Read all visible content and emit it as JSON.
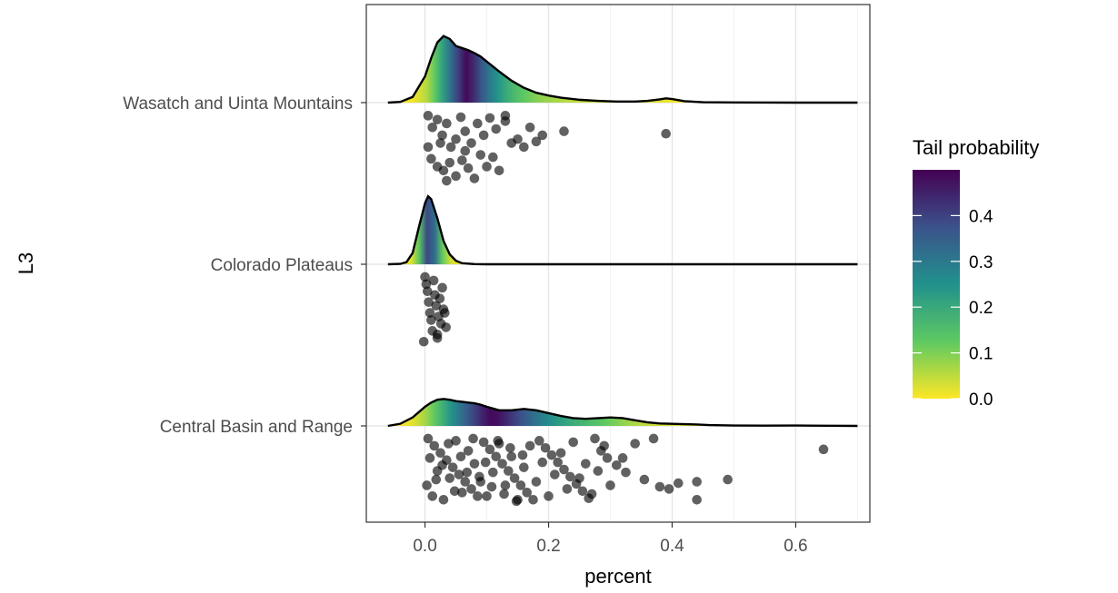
{
  "chart_data": {
    "type": "ridgeline-density-with-jittered-points",
    "xlabel": "percent",
    "ylabel": "L3",
    "xlim": [
      -0.095,
      0.72
    ],
    "x_ticks": [
      0.0,
      0.2,
      0.4,
      0.6
    ],
    "x_tick_labels": [
      "0.0",
      "0.2",
      "0.4",
      "0.6"
    ],
    "grid": "on",
    "legend": {
      "title": "Tail probability",
      "placement": "right",
      "range": [
        0,
        0.5
      ],
      "ticks": [
        0.0,
        0.1,
        0.2,
        0.3,
        0.4
      ],
      "tick_labels": [
        "0.0",
        "0.1",
        "0.2",
        "0.3",
        "0.4"
      ],
      "colors": [
        "#fde725",
        "#5ec962",
        "#21918c",
        "#3b528b",
        "#440154"
      ]
    },
    "categories": [
      "Wasatch and Uinta Mountains",
      "Colorado Plateaus",
      "Central Basin and Range"
    ],
    "series": [
      {
        "name": "Wasatch and Uinta Mountains",
        "density": {
          "x": [
            -0.06,
            -0.04,
            -0.02,
            0.0,
            0.01,
            0.02,
            0.03,
            0.04,
            0.05,
            0.06,
            0.07,
            0.08,
            0.09,
            0.1,
            0.12,
            0.14,
            0.16,
            0.18,
            0.2,
            0.22,
            0.25,
            0.28,
            0.31,
            0.34,
            0.36,
            0.38,
            0.39,
            0.4,
            0.42,
            0.45,
            0.5,
            0.6,
            0.7
          ],
          "y": [
            0.0,
            0.01,
            0.08,
            0.37,
            0.63,
            0.85,
            0.94,
            0.9,
            0.8,
            0.77,
            0.74,
            0.7,
            0.65,
            0.58,
            0.44,
            0.31,
            0.21,
            0.14,
            0.1,
            0.07,
            0.04,
            0.025,
            0.015,
            0.015,
            0.025,
            0.045,
            0.06,
            0.05,
            0.02,
            0.006,
            0.002,
            0.0,
            0.0
          ]
        },
        "points": [
          [
            0.005,
            0.95
          ],
          [
            0.012,
            0.8
          ],
          [
            0.02,
            0.9
          ],
          [
            0.028,
            0.7
          ],
          [
            0.035,
            0.85
          ],
          [
            0.042,
            0.55
          ],
          [
            0.05,
            0.65
          ],
          [
            0.058,
            0.93
          ],
          [
            0.065,
            0.75
          ],
          [
            0.075,
            0.6
          ],
          [
            0.085,
            0.85
          ],
          [
            0.095,
            0.7
          ],
          [
            0.105,
            0.92
          ],
          [
            0.115,
            0.78
          ],
          [
            0.13,
            0.88
          ],
          [
            0.15,
            0.65
          ],
          [
            0.17,
            0.8
          ],
          [
            0.19,
            0.7
          ],
          [
            0.225,
            0.75
          ],
          [
            0.39,
            0.72
          ],
          [
            0.01,
            0.4
          ],
          [
            0.02,
            0.3
          ],
          [
            0.03,
            0.25
          ],
          [
            0.04,
            0.35
          ],
          [
            0.05,
            0.18
          ],
          [
            0.06,
            0.38
          ],
          [
            0.07,
            0.28
          ],
          [
            0.08,
            0.15
          ],
          [
            0.09,
            0.45
          ],
          [
            0.1,
            0.3
          ],
          [
            0.12,
            0.25
          ],
          [
            0.14,
            0.6
          ],
          [
            0.16,
            0.55
          ],
          [
            0.18,
            0.62
          ],
          [
            0.005,
            0.55
          ],
          [
            0.035,
            0.12
          ],
          [
            0.065,
            0.5
          ],
          [
            0.11,
            0.42
          ],
          [
            0.13,
            0.95
          ],
          [
            0.025,
            0.6
          ]
        ]
      },
      {
        "name": "Colorado Plateaus",
        "density": {
          "x": [
            -0.06,
            -0.04,
            -0.03,
            -0.02,
            -0.01,
            0.0,
            0.005,
            0.01,
            0.02,
            0.03,
            0.04,
            0.05,
            0.06,
            0.08,
            0.1,
            0.2,
            0.4,
            0.7
          ],
          "y": [
            0.0,
            0.005,
            0.03,
            0.16,
            0.52,
            0.86,
            0.96,
            0.92,
            0.65,
            0.33,
            0.14,
            0.05,
            0.015,
            0.002,
            0.0,
            0.0,
            0.0,
            0.0
          ]
        },
        "points": [
          [
            0.0,
            0.95
          ],
          [
            0.002,
            0.85
          ],
          [
            0.004,
            0.75
          ],
          [
            0.006,
            0.6
          ],
          [
            0.008,
            0.45
          ],
          [
            0.01,
            0.35
          ],
          [
            0.012,
            0.2
          ],
          [
            0.014,
            0.9
          ],
          [
            0.016,
            0.7
          ],
          [
            0.018,
            0.55
          ],
          [
            0.02,
            0.1
          ],
          [
            0.022,
            0.4
          ],
          [
            0.024,
            0.65
          ],
          [
            0.026,
            0.3
          ],
          [
            0.028,
            0.8
          ],
          [
            0.03,
            0.5
          ],
          [
            0.032,
            0.45
          ],
          [
            0.034,
            0.25
          ],
          [
            0.02,
            0.15
          ],
          [
            -0.002,
            0.05
          ]
        ]
      },
      {
        "name": "Central Basin and Range",
        "density": {
          "x": [
            -0.06,
            -0.04,
            -0.02,
            0.0,
            0.01,
            0.02,
            0.03,
            0.04,
            0.05,
            0.06,
            0.07,
            0.08,
            0.09,
            0.1,
            0.12,
            0.14,
            0.16,
            0.18,
            0.2,
            0.22,
            0.24,
            0.26,
            0.28,
            0.3,
            0.32,
            0.34,
            0.36,
            0.38,
            0.4,
            0.42,
            0.44,
            0.46,
            0.5,
            0.55,
            0.6,
            0.65,
            0.7
          ],
          "y": [
            0.0,
            0.03,
            0.12,
            0.27,
            0.33,
            0.37,
            0.38,
            0.37,
            0.35,
            0.34,
            0.33,
            0.32,
            0.3,
            0.27,
            0.22,
            0.22,
            0.24,
            0.22,
            0.18,
            0.14,
            0.11,
            0.1,
            0.11,
            0.12,
            0.11,
            0.08,
            0.05,
            0.035,
            0.03,
            0.025,
            0.02,
            0.012,
            0.006,
            0.004,
            0.006,
            0.002,
            0.0
          ]
        },
        "points": [
          [
            0.005,
            0.95
          ],
          [
            0.015,
            0.85
          ],
          [
            0.025,
            0.75
          ],
          [
            0.035,
            0.65
          ],
          [
            0.045,
            0.55
          ],
          [
            0.055,
            0.45
          ],
          [
            0.065,
            0.35
          ],
          [
            0.075,
            0.25
          ],
          [
            0.085,
            0.15
          ],
          [
            0.095,
            0.9
          ],
          [
            0.105,
            0.8
          ],
          [
            0.115,
            0.7
          ],
          [
            0.125,
            0.6
          ],
          [
            0.135,
            0.5
          ],
          [
            0.145,
            0.4
          ],
          [
            0.155,
            0.3
          ],
          [
            0.165,
            0.2
          ],
          [
            0.175,
            0.1
          ],
          [
            0.185,
            0.92
          ],
          [
            0.195,
            0.82
          ],
          [
            0.205,
            0.72
          ],
          [
            0.215,
            0.62
          ],
          [
            0.225,
            0.52
          ],
          [
            0.235,
            0.42
          ],
          [
            0.245,
            0.32
          ],
          [
            0.255,
            0.22
          ],
          [
            0.265,
            0.12
          ],
          [
            0.275,
            0.95
          ],
          [
            0.285,
            0.78
          ],
          [
            0.295,
            0.68
          ],
          [
            0.31,
            0.58
          ],
          [
            0.325,
            0.48
          ],
          [
            0.34,
            0.88
          ],
          [
            0.355,
            0.38
          ],
          [
            0.37,
            0.95
          ],
          [
            0.38,
            0.28
          ],
          [
            0.395,
            0.25
          ],
          [
            0.41,
            0.33
          ],
          [
            0.44,
            0.35
          ],
          [
            0.44,
            0.1
          ],
          [
            0.49,
            0.38
          ],
          [
            0.645,
            0.8
          ],
          [
            0.003,
            0.3
          ],
          [
            0.012,
            0.15
          ],
          [
            0.02,
            0.5
          ],
          [
            0.03,
            0.1
          ],
          [
            0.04,
            0.4
          ],
          [
            0.05,
            0.92
          ],
          [
            0.06,
            0.2
          ],
          [
            0.07,
            0.78
          ],
          [
            0.08,
            0.6
          ],
          [
            0.09,
            0.35
          ],
          [
            0.1,
            0.15
          ],
          [
            0.11,
            0.48
          ],
          [
            0.12,
            0.88
          ],
          [
            0.13,
            0.3
          ],
          [
            0.14,
            0.7
          ],
          [
            0.15,
            0.1
          ],
          [
            0.16,
            0.55
          ],
          [
            0.17,
            0.85
          ],
          [
            0.18,
            0.35
          ],
          [
            0.19,
            0.62
          ],
          [
            0.2,
            0.15
          ],
          [
            0.21,
            0.45
          ],
          [
            0.22,
            0.75
          ],
          [
            0.23,
            0.25
          ],
          [
            0.24,
            0.9
          ],
          [
            0.25,
            0.4
          ],
          [
            0.26,
            0.6
          ],
          [
            0.27,
            0.18
          ],
          [
            0.28,
            0.5
          ],
          [
            0.29,
            0.85
          ],
          [
            0.3,
            0.3
          ],
          [
            0.32,
            0.68
          ],
          [
            0.008,
            0.68
          ],
          [
            0.018,
            0.38
          ],
          [
            0.028,
            0.58
          ],
          [
            0.038,
            0.88
          ],
          [
            0.048,
            0.22
          ],
          [
            0.058,
            0.7
          ],
          [
            0.068,
            0.48
          ],
          [
            0.078,
            0.95
          ],
          [
            0.088,
            0.42
          ],
          [
            0.098,
            0.62
          ],
          [
            0.108,
            0.28
          ],
          [
            0.118,
            0.92
          ],
          [
            0.128,
            0.18
          ],
          [
            0.138,
            0.82
          ],
          [
            0.148,
            0.08
          ],
          [
            0.158,
            0.72
          ]
        ]
      }
    ]
  }
}
